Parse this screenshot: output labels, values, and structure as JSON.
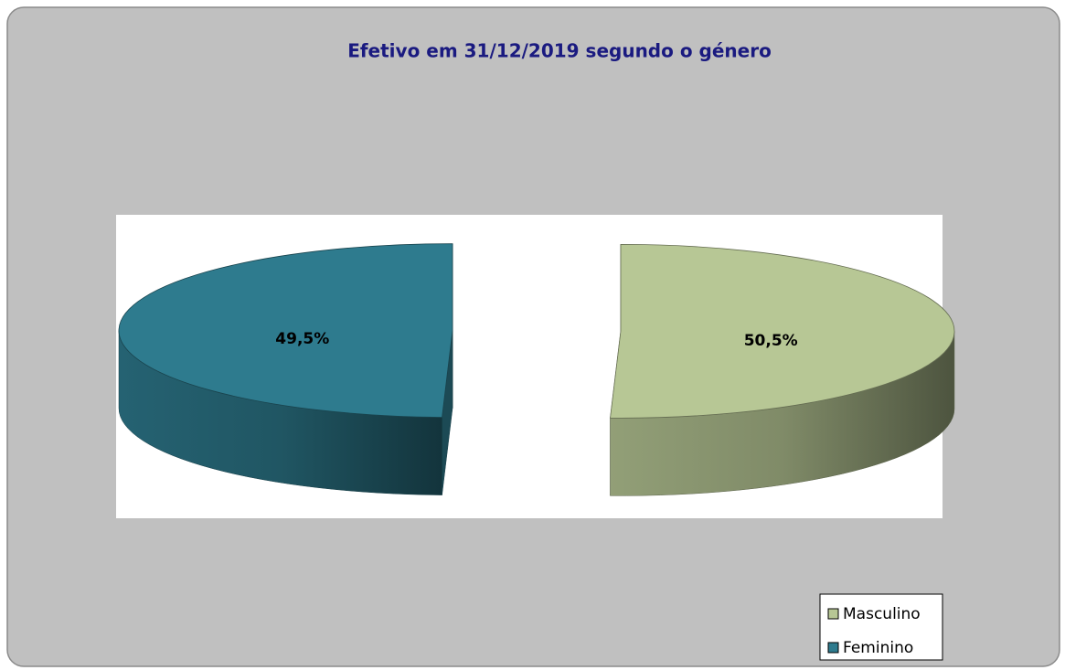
{
  "chart_data": {
    "type": "pie",
    "title": "Efetivo em 31/12/2019  segundo o género",
    "categories": [
      "Masculino",
      "Feminino"
    ],
    "values": [
      50.5,
      49.5
    ],
    "value_labels": [
      "50,5%",
      "49,5%"
    ],
    "colors": [
      "#b7c795",
      "#2e7b8e"
    ],
    "legend": "bottom-right"
  }
}
